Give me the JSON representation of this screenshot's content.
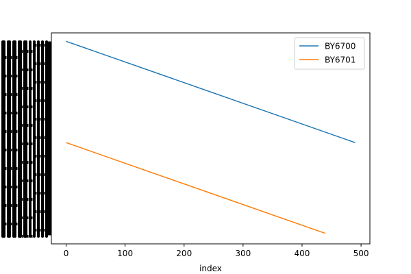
{
  "chart_data": {
    "type": "line",
    "title": "",
    "xlabel": "index",
    "ylabel": "",
    "xlim": [
      -25,
      515
    ],
    "ylim": [
      0,
      100
    ],
    "x_ticks": [
      0,
      100,
      200,
      300,
      400,
      500
    ],
    "x_tick_labels": [
      "0",
      "100",
      "200",
      "300",
      "400",
      "500"
    ],
    "y_tick_labels_overplotted": true,
    "y_tick_count": 440,
    "grid": false,
    "legend_position": "top-right",
    "series": [
      {
        "name": "BY6700",
        "color": "#1f77b4",
        "x": [
          0,
          490
        ],
        "y": [
          96,
          48
        ]
      },
      {
        "name": "BY6701",
        "color": "#ff7f0e",
        "x": [
          0,
          439
        ],
        "y": [
          48,
          5
        ]
      }
    ]
  }
}
